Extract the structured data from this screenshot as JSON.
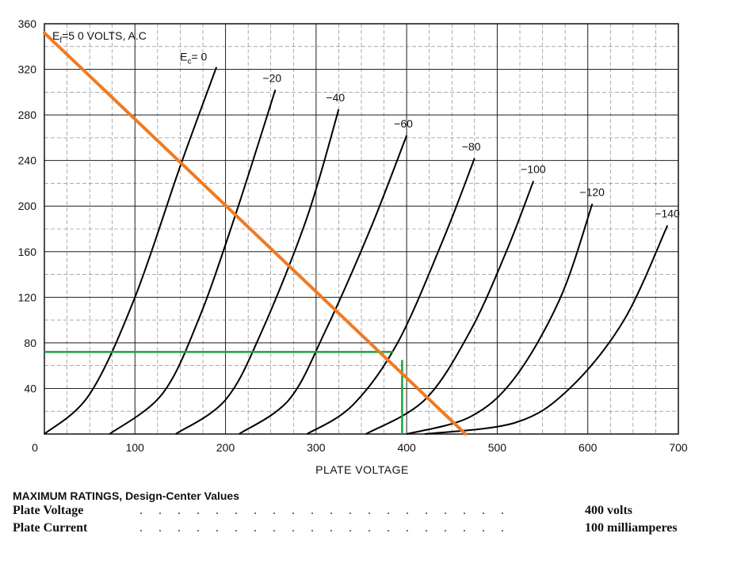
{
  "chart_data": {
    "type": "line",
    "title": "",
    "xlabel": "PLATE VOLTAGE",
    "ylabel": "",
    "xlim": [
      0,
      700
    ],
    "ylim": [
      0,
      360
    ],
    "x_ticks": [
      0,
      100,
      200,
      300,
      400,
      500,
      600,
      700
    ],
    "y_ticks": [
      40,
      80,
      120,
      160,
      200,
      240,
      280,
      320,
      360
    ],
    "grid": true,
    "annotations": {
      "heater": "E",
      "heater_sub": "f",
      "heater_rest": "=5 0 VOLTS, A.C",
      "grid_prefix": "E",
      "grid_sub": "c",
      "grid_rest": "= 0"
    },
    "series": [
      {
        "name": "0",
        "x": [
          0,
          50,
          100,
          150,
          190
        ],
        "y": [
          0,
          35,
          120,
          235,
          322
        ]
      },
      {
        "name": "−20",
        "x": [
          72,
          130,
          170,
          210,
          255
        ],
        "y": [
          0,
          35,
          100,
          190,
          302
        ]
      },
      {
        "name": "−40",
        "x": [
          145,
          200,
          240,
          290,
          325
        ],
        "y": [
          0,
          30,
          90,
          190,
          285
        ]
      },
      {
        "name": "−60",
        "x": [
          215,
          270,
          310,
          360,
          400
        ],
        "y": [
          0,
          30,
          90,
          180,
          262
        ]
      },
      {
        "name": "−80",
        "x": [
          290,
          340,
          390,
          440,
          475
        ],
        "y": [
          0,
          25,
          80,
          170,
          242
        ]
      },
      {
        "name": "−100",
        "x": [
          355,
          420,
          470,
          510,
          540
        ],
        "y": [
          0,
          30,
          90,
          160,
          222
        ]
      },
      {
        "name": "−120",
        "x": [
          400,
          470,
          520,
          570,
          605
        ],
        "y": [
          0,
          15,
          50,
          120,
          202
        ]
      },
      {
        "name": "−140",
        "x": [
          420,
          520,
          580,
          640,
          688
        ],
        "y": [
          0,
          10,
          40,
          100,
          183
        ]
      }
    ],
    "load_line": {
      "x": [
        0,
        465
      ],
      "y": [
        352,
        0
      ],
      "color": "#f07a22"
    },
    "operating_point": {
      "x": 395,
      "y": 72,
      "x_top": 65,
      "color": "#1aa33a"
    }
  },
  "ratings": {
    "title": "MAXIMUM RATINGS, Design-Center Values",
    "rows": [
      {
        "label": "Plate Voltage",
        "dots": ". . . . . . . . . . . . . . . . . . . .",
        "value": "400  volts"
      },
      {
        "label": "Plate Current",
        "dots": ". . . . . . . . . . . . . . . . . . . .",
        "value": "100  milliamperes"
      }
    ]
  }
}
